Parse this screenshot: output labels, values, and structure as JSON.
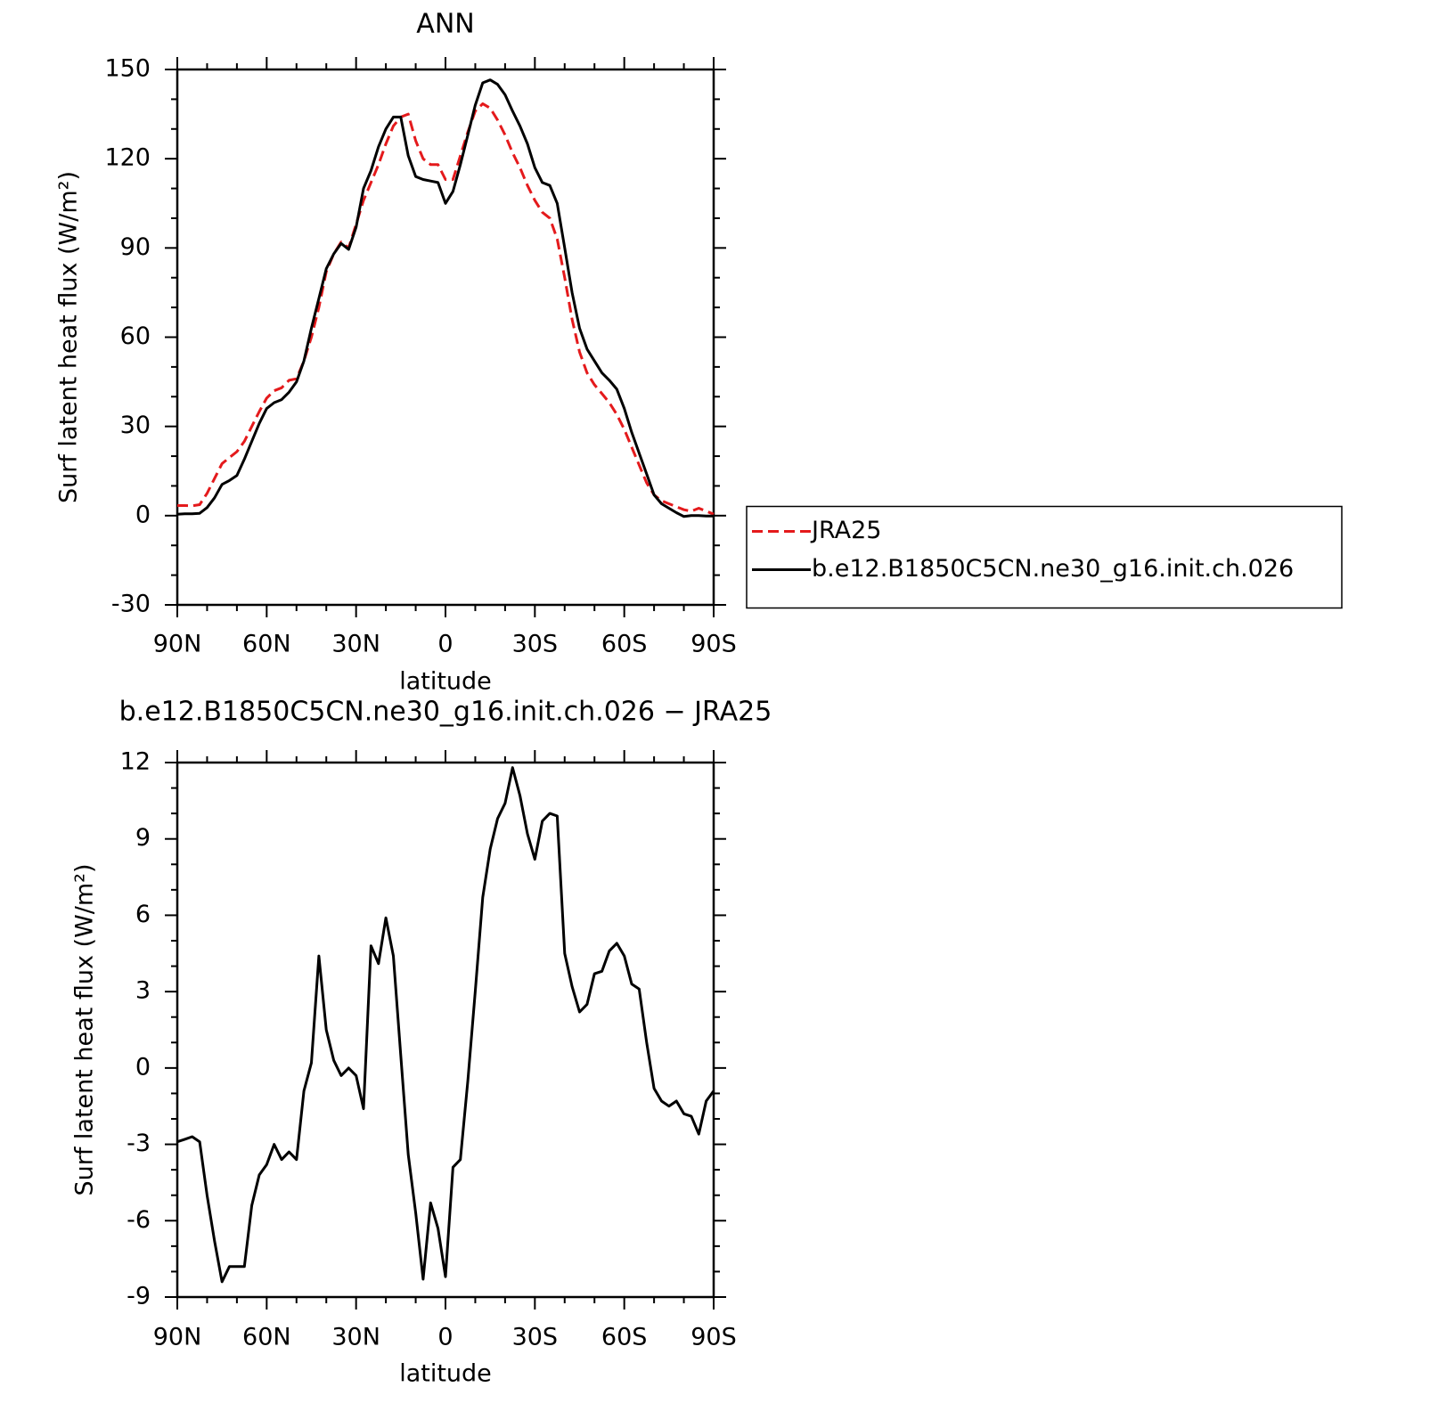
{
  "chart_data": [
    {
      "type": "line",
      "title": "ANN",
      "xlabel": "latitude",
      "ylabel": "Surf latent heat flux (W/m²)",
      "x": [
        90,
        87.5,
        85,
        82.5,
        80,
        77.5,
        75,
        72.5,
        70,
        67.5,
        65,
        62.5,
        60,
        57.5,
        55,
        52.5,
        50,
        47.5,
        45,
        42.5,
        40,
        37.5,
        35,
        32.5,
        30,
        27.5,
        25,
        22.5,
        20,
        17.5,
        15,
        12.5,
        10,
        7.5,
        5,
        2.5,
        0,
        -2.5,
        -5,
        -7.5,
        -10,
        -12.5,
        -15,
        -17.5,
        -20,
        -22.5,
        -25,
        -27.5,
        -30,
        -32.5,
        -35,
        -37.5,
        -40,
        -42.5,
        -45,
        -47.5,
        -50,
        -52.5,
        -55,
        -57.5,
        -60,
        -62.5,
        -65,
        -67.5,
        -70,
        -72.5,
        -75,
        -77.5,
        -80,
        -82.5,
        -85,
        -87.5,
        -90
      ],
      "xlim": [
        90,
        -90
      ],
      "xticks": [
        {
          "value": 90,
          "label": "90N"
        },
        {
          "value": 60,
          "label": "60N"
        },
        {
          "value": 30,
          "label": "30N"
        },
        0,
        {
          "value": -30,
          "label": "30S"
        },
        {
          "value": -60,
          "label": "60S"
        },
        {
          "value": -90,
          "label": "90S"
        }
      ],
      "ylim": [
        -30,
        150
      ],
      "yticks": [
        -30,
        0,
        30,
        60,
        90,
        120,
        150
      ],
      "legend": "right",
      "series": [
        {
          "name": "JRA25",
          "color": "#e41a1c",
          "linestyle": "dashed",
          "values": [
            3.4,
            3.4,
            3.3,
            3.7,
            7.5,
            12.5,
            17.5,
            19.5,
            21.5,
            25,
            30,
            35,
            39.5,
            42,
            43,
            45.5,
            46,
            52,
            60,
            70,
            82,
            88,
            92,
            90,
            98,
            106,
            112,
            118,
            125,
            131,
            134,
            135,
            126,
            120,
            118,
            118,
            113,
            113,
            121,
            129,
            136,
            138.5,
            137,
            133,
            128,
            122,
            117,
            111,
            106,
            102,
            100,
            93,
            80,
            66,
            55,
            48,
            44,
            41,
            38,
            34,
            29,
            23,
            17,
            11,
            7,
            5,
            4,
            3,
            2,
            1.5,
            2.5,
            1.5,
            0.5
          ]
        },
        {
          "name": "b.e12.B1850C5CN.ne30_g16.init.ch.026",
          "color": "#000000",
          "linestyle": "solid",
          "values": [
            0.5,
            0.6,
            0.6,
            0.8,
            2.7,
            6,
            10.5,
            11.8,
            13.5,
            19,
            25,
            31,
            36,
            38,
            39,
            41.5,
            45,
            52,
            63,
            73,
            83,
            88,
            91.5,
            89.5,
            97,
            110,
            116,
            124,
            130,
            134,
            134,
            121,
            114,
            113,
            112.5,
            112,
            105,
            109,
            118,
            128,
            138,
            145.5,
            146.5,
            145,
            141.5,
            136,
            131,
            125,
            117,
            112,
            111,
            105,
            90,
            75,
            63,
            56,
            52,
            48,
            45.5,
            42.5,
            36,
            28,
            21,
            14,
            7,
            4,
            2.5,
            1,
            -0.3,
            0,
            0,
            -0.1,
            -0.1
          ]
        }
      ]
    },
    {
      "type": "line",
      "title": "b.e12.B1850C5CN.ne30_g16.init.ch.026 − JRA25",
      "xlabel": "latitude",
      "ylabel": "Surf latent heat flux (W/m²)",
      "x": [
        90,
        87.5,
        85,
        82.5,
        80,
        77.5,
        75,
        72.5,
        70,
        67.5,
        65,
        62.5,
        60,
        57.5,
        55,
        52.5,
        50,
        47.5,
        45,
        42.5,
        40,
        37.5,
        35,
        32.5,
        30,
        27.5,
        25,
        22.5,
        20,
        17.5,
        15,
        12.5,
        10,
        7.5,
        5,
        2.5,
        0,
        -2.5,
        -5,
        -7.5,
        -10,
        -12.5,
        -15,
        -17.5,
        -20,
        -22.5,
        -25,
        -27.5,
        -30,
        -32.5,
        -35,
        -37.5,
        -40,
        -42.5,
        -45,
        -47.5,
        -50,
        -52.5,
        -55,
        -57.5,
        -60,
        -62.5,
        -65,
        -67.5,
        -70,
        -72.5,
        -75,
        -77.5,
        -80,
        -82.5,
        -85,
        -87.5,
        -90
      ],
      "xlim": [
        90,
        -90
      ],
      "xticks": [
        {
          "value": 90,
          "label": "90N"
        },
        {
          "value": 60,
          "label": "60N"
        },
        {
          "value": 30,
          "label": "30N"
        },
        0,
        {
          "value": -30,
          "label": "30S"
        },
        {
          "value": -60,
          "label": "60S"
        },
        {
          "value": -90,
          "label": "90S"
        }
      ],
      "ylim": [
        -9,
        12
      ],
      "yticks": [
        -9,
        -6,
        -3,
        0,
        3,
        6,
        9,
        12
      ],
      "series": [
        {
          "color": "#000000",
          "linestyle": "solid",
          "values": [
            -2.9,
            -2.8,
            -2.7,
            -2.9,
            -5.0,
            -6.8,
            -8.4,
            -7.8,
            -7.8,
            -7.8,
            -5.4,
            -4.2,
            -3.8,
            -3.0,
            -3.6,
            -3.3,
            -3.6,
            -0.9,
            0.2,
            4.4,
            1.5,
            0.3,
            -0.3,
            0.0,
            -0.3,
            -1.6,
            4.8,
            4.1,
            5.9,
            4.4,
            0.5,
            -3.4,
            -5.7,
            -8.3,
            -5.3,
            -6.3,
            -8.2,
            -3.9,
            -3.6,
            -0.5,
            3.0,
            6.7,
            8.6,
            9.8,
            10.4,
            11.8,
            10.7,
            9.2,
            8.2,
            9.7,
            10.0,
            9.9,
            4.5,
            3.2,
            2.2,
            2.5,
            3.7,
            3.8,
            4.6,
            4.9,
            4.4,
            3.3,
            3.1,
            1.0,
            -0.8,
            -1.3,
            -1.5,
            -1.3,
            -1.8,
            -1.9,
            -2.6,
            -1.3,
            -0.9
          ]
        }
      ]
    }
  ]
}
